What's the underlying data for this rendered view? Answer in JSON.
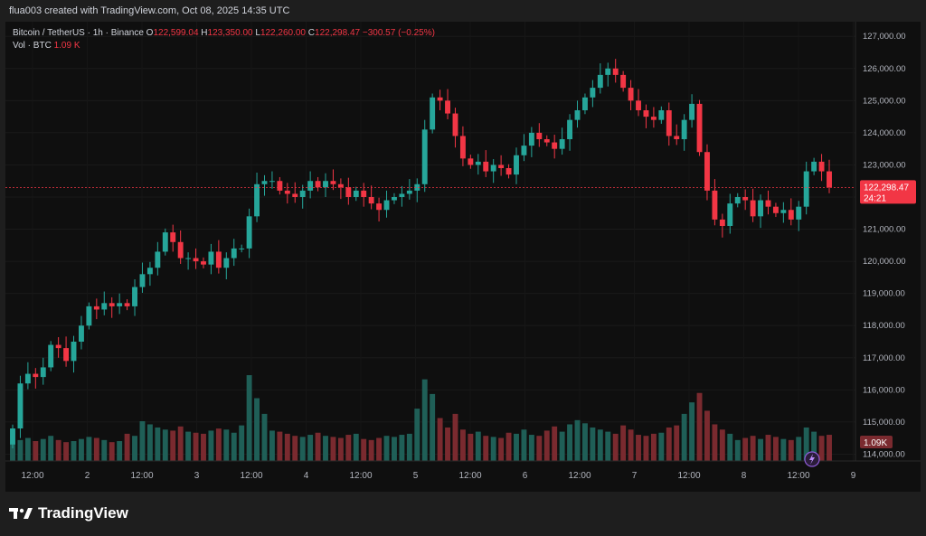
{
  "header": {
    "credit": "flua003 created with TradingView.com, Oct 08, 2025 14:35 UTC"
  },
  "legend": {
    "symbol": "Bitcoin / TetherUS · 1h · Binance",
    "open_label": "O",
    "open": "122,599.04",
    "high_label": "H",
    "high": "123,350.00",
    "low_label": "L",
    "low": "122,260.00",
    "close_label": "C",
    "close": "122,298.47",
    "change": "−300.57 (−0.25%)",
    "vol_label": "Vol · BTC",
    "vol_value": "1.09 K"
  },
  "price_tag": {
    "price": "122,298.47",
    "countdown": "24:21",
    "price_value": 122298.47
  },
  "volume_tag": "1.09K",
  "footer": {
    "brand": "TradingView"
  },
  "colors": {
    "up": "#26a69a",
    "down": "#f23645",
    "up_vol": "#1f5f57",
    "down_vol": "#7a2a2f",
    "background": "#0f0f0f"
  },
  "chart_data": {
    "type": "candlestick",
    "symbol": "BTCUSDT",
    "interval": "1h",
    "y_ticks": [
      114000,
      115000,
      116000,
      117000,
      118000,
      119000,
      120000,
      121000,
      122000,
      123000,
      124000,
      125000,
      126000,
      127000
    ],
    "y_tick_labels": [
      "114,000.00",
      "115,000.00",
      "116,000.00",
      "117,000.00",
      "118,000.00",
      "119,000.00",
      "120,000.00",
      "121,000.00",
      "122,000.00",
      "123,000.00",
      "124,000.00",
      "125,000.00",
      "126,000.00",
      "127,000.00"
    ],
    "x_tick_labels": [
      "12:00",
      "2",
      "12:00",
      "3",
      "12:00",
      "4",
      "12:00",
      "5",
      "12:00",
      "6",
      "12:00",
      "7",
      "12:00",
      "8",
      "12:00",
      "9"
    ],
    "ylim": [
      113900,
      127400
    ],
    "close_series": [
      114800,
      116200,
      116500,
      116400,
      116700,
      117400,
      117300,
      116900,
      117500,
      118000,
      118600,
      118500,
      118700,
      118600,
      118700,
      118600,
      119200,
      119600,
      119800,
      120300,
      120900,
      120600,
      120100,
      120100,
      120000,
      119900,
      120300,
      119800,
      120100,
      120400,
      120400,
      121400,
      122400,
      122500,
      122500,
      122200,
      122100,
      122000,
      122200,
      122500,
      122300,
      122500,
      122400,
      122300,
      122000,
      122200,
      122000,
      121800,
      121600,
      121900,
      122000,
      122100,
      122200,
      122400,
      124100,
      125100,
      125000,
      124600,
      123900,
      123200,
      123000,
      123100,
      122800,
      123000,
      122900,
      122700,
      123300,
      123600,
      124000,
      123800,
      123700,
      123500,
      123800,
      124400,
      124700,
      125100,
      125400,
      125800,
      126000,
      125800,
      125400,
      125000,
      124700,
      124500,
      124400,
      124700,
      123900,
      123800,
      124400,
      124900,
      123400,
      122200,
      121300,
      121100,
      121800,
      122000,
      121900,
      121400,
      121900,
      121700,
      121500,
      121600,
      121300,
      121700,
      122800,
      123100,
      122800,
      122300
    ],
    "volume_series": [
      1.8,
      2.0,
      2.2,
      1.9,
      2.1,
      2.4,
      2.0,
      1.8,
      1.9,
      2.1,
      2.3,
      2.2,
      2.0,
      1.8,
      1.9,
      2.6,
      2.4,
      3.8,
      3.5,
      3.2,
      3.0,
      2.9,
      3.3,
      2.8,
      2.7,
      2.6,
      2.9,
      3.1,
      3.0,
      2.7,
      3.4,
      8.2,
      6.0,
      4.5,
      2.9,
      2.8,
      2.6,
      2.4,
      2.3,
      2.5,
      2.7,
      2.4,
      2.3,
      2.2,
      2.5,
      2.6,
      2.1,
      2.0,
      2.2,
      2.4,
      2.3,
      2.5,
      2.6,
      5.0,
      7.8,
      6.4,
      4.1,
      3.2,
      4.5,
      3.0,
      2.6,
      2.8,
      2.4,
      2.3,
      2.2,
      2.7,
      2.6,
      3.0,
      2.5,
      2.4,
      2.9,
      3.3,
      2.8,
      3.5,
      3.9,
      3.6,
      3.2,
      3.0,
      2.8,
      2.6,
      3.4,
      3.0,
      2.5,
      2.4,
      2.6,
      2.7,
      3.2,
      3.4,
      4.5,
      5.6,
      6.5,
      4.8,
      3.5,
      3.0,
      2.6,
      2.0,
      2.2,
      2.4,
      2.1,
      2.5,
      2.3,
      2.1,
      2.0,
      2.3,
      3.2,
      2.8,
      2.4,
      2.5
    ]
  }
}
